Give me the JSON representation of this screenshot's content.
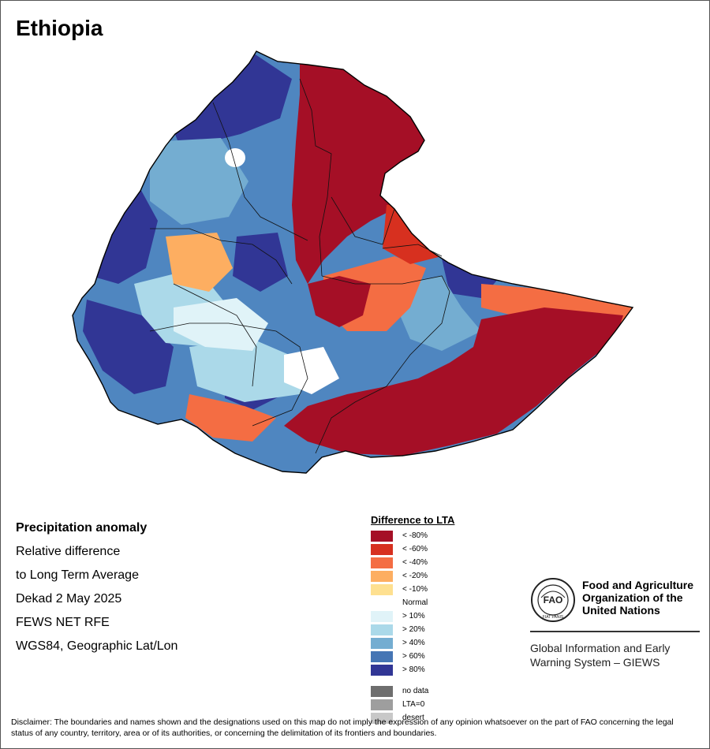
{
  "title": "Ethiopia",
  "info": {
    "heading": "Precipitation anomaly",
    "line1": "Relative difference",
    "line2": "to Long Term Average",
    "line3": "Dekad 2 May 2025",
    "line4": "FEWS NET RFE",
    "line5": "WGS84, Geographic Lat/Lon"
  },
  "legend": {
    "title": "Difference to LTA",
    "classes": [
      {
        "label": "< -80%",
        "color": "#a50f26"
      },
      {
        "label": "< -60%",
        "color": "#d7301f"
      },
      {
        "label": "< -40%",
        "color": "#f46d43"
      },
      {
        "label": "< -20%",
        "color": "#fdae61"
      },
      {
        "label": "< -10%",
        "color": "#fee090"
      },
      {
        "label": "Normal",
        "color": "#ffffff"
      },
      {
        "label": "> 10%",
        "color": "#e0f3f8"
      },
      {
        "label": "> 20%",
        "color": "#abd9e9"
      },
      {
        "label": "> 40%",
        "color": "#74add1"
      },
      {
        "label": "> 60%",
        "color": "#4575b4"
      },
      {
        "label": "> 80%",
        "color": "#313695"
      }
    ],
    "special": [
      {
        "label": "no data",
        "color": "#6e6e6e"
      },
      {
        "label": "LTA=0",
        "color": "#9e9e9e"
      },
      {
        "label": "desert",
        "color": "#c8c8c8"
      }
    ]
  },
  "org": {
    "name_line1": "Food and Agriculture",
    "name_line2": "Organization of the",
    "name_line3": "United Nations",
    "system_line1": "Global Information and Early",
    "system_line2": "Warning System – GIEWS",
    "logo_text": "FAO",
    "logo_motto": "FIAT PANIS"
  },
  "disclaimer": "Disclaimer: The boundaries and names shown and the designations used on this map do not imply the expression of any opinion whatsoever on the part of FAO concerning the legal status of any country, territory, area or of its authorities, or concerning the delimitation of its frontiers and boundaries."
}
